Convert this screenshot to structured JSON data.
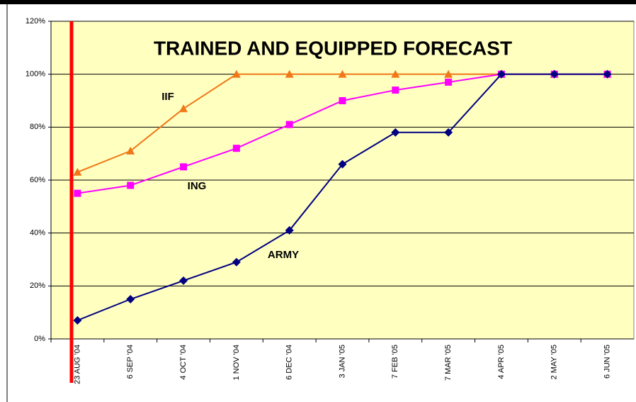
{
  "chart_data": {
    "type": "line",
    "title": "TRAINED AND EQUIPPED FORECAST",
    "categories": [
      "23 AUG '04",
      "6 SEP '04",
      "4 OCT '04",
      "1 NOV '04",
      "6 DEC '04",
      "3 JAN '05",
      "7 FEB '05",
      "7 MAR '05",
      "4 APR '05",
      "2 MAY '05",
      "6 JUN '05"
    ],
    "series": [
      {
        "name": "IIF",
        "color": "#f07818",
        "marker": "triangle",
        "values": [
          63,
          71,
          87,
          100,
          100,
          100,
          100,
          100,
          100,
          100,
          100
        ]
      },
      {
        "name": "ING",
        "color": "#ff00ff",
        "marker": "square",
        "values": [
          55,
          58,
          65,
          72,
          81,
          90,
          94,
          97,
          100,
          100,
          100
        ]
      },
      {
        "name": "ARMY",
        "color": "#000080",
        "marker": "diamond",
        "values": [
          7,
          15,
          22,
          29,
          41,
          66,
          78,
          78,
          100,
          100,
          100
        ]
      }
    ],
    "ylim": [
      0,
      120
    ],
    "yticks": [
      {
        "value": 0,
        "label": "0%"
      },
      {
        "value": 20,
        "label": "20%"
      },
      {
        "value": 40,
        "label": "40%"
      },
      {
        "value": 60,
        "label": "60%"
      },
      {
        "value": 80,
        "label": "80%"
      },
      {
        "value": 100,
        "label": "100%"
      },
      {
        "value": 120,
        "label": "120%"
      }
    ],
    "grid": true
  }
}
